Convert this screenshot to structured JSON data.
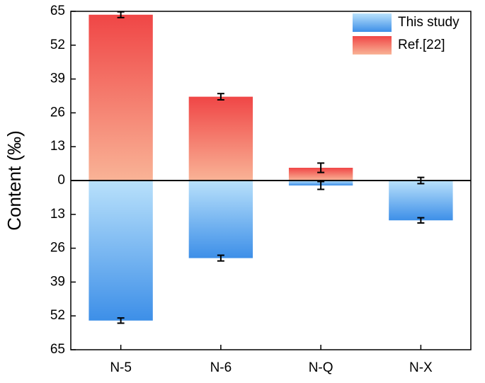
{
  "chart_data": {
    "type": "bar",
    "categories": [
      "N-5",
      "N-6",
      "N-Q",
      "N-X"
    ],
    "series": [
      {
        "name": "This study",
        "color": "#3d8fe8",
        "values": [
          -53.8,
          -29.8,
          -1.9,
          -15.3
        ],
        "errors": [
          1.0,
          1.1,
          1.5,
          1.0
        ]
      },
      {
        "name": "Ref.[22]",
        "color": "#f04646",
        "values": [
          63.7,
          32.2,
          4.9,
          0
        ],
        "errors": [
          1.1,
          1.2,
          1.8,
          1.2
        ]
      }
    ],
    "y_label": "Content (‰)",
    "ylim": [
      -65,
      65
    ],
    "yticks": [
      {
        "value": -65,
        "label": "65"
      },
      {
        "value": -52,
        "label": "52"
      },
      {
        "value": -39,
        "label": "39"
      },
      {
        "value": -26,
        "label": "26"
      },
      {
        "value": -13,
        "label": "13"
      },
      0,
      13,
      26,
      39,
      52,
      65
    ],
    "legend": "upper right"
  }
}
